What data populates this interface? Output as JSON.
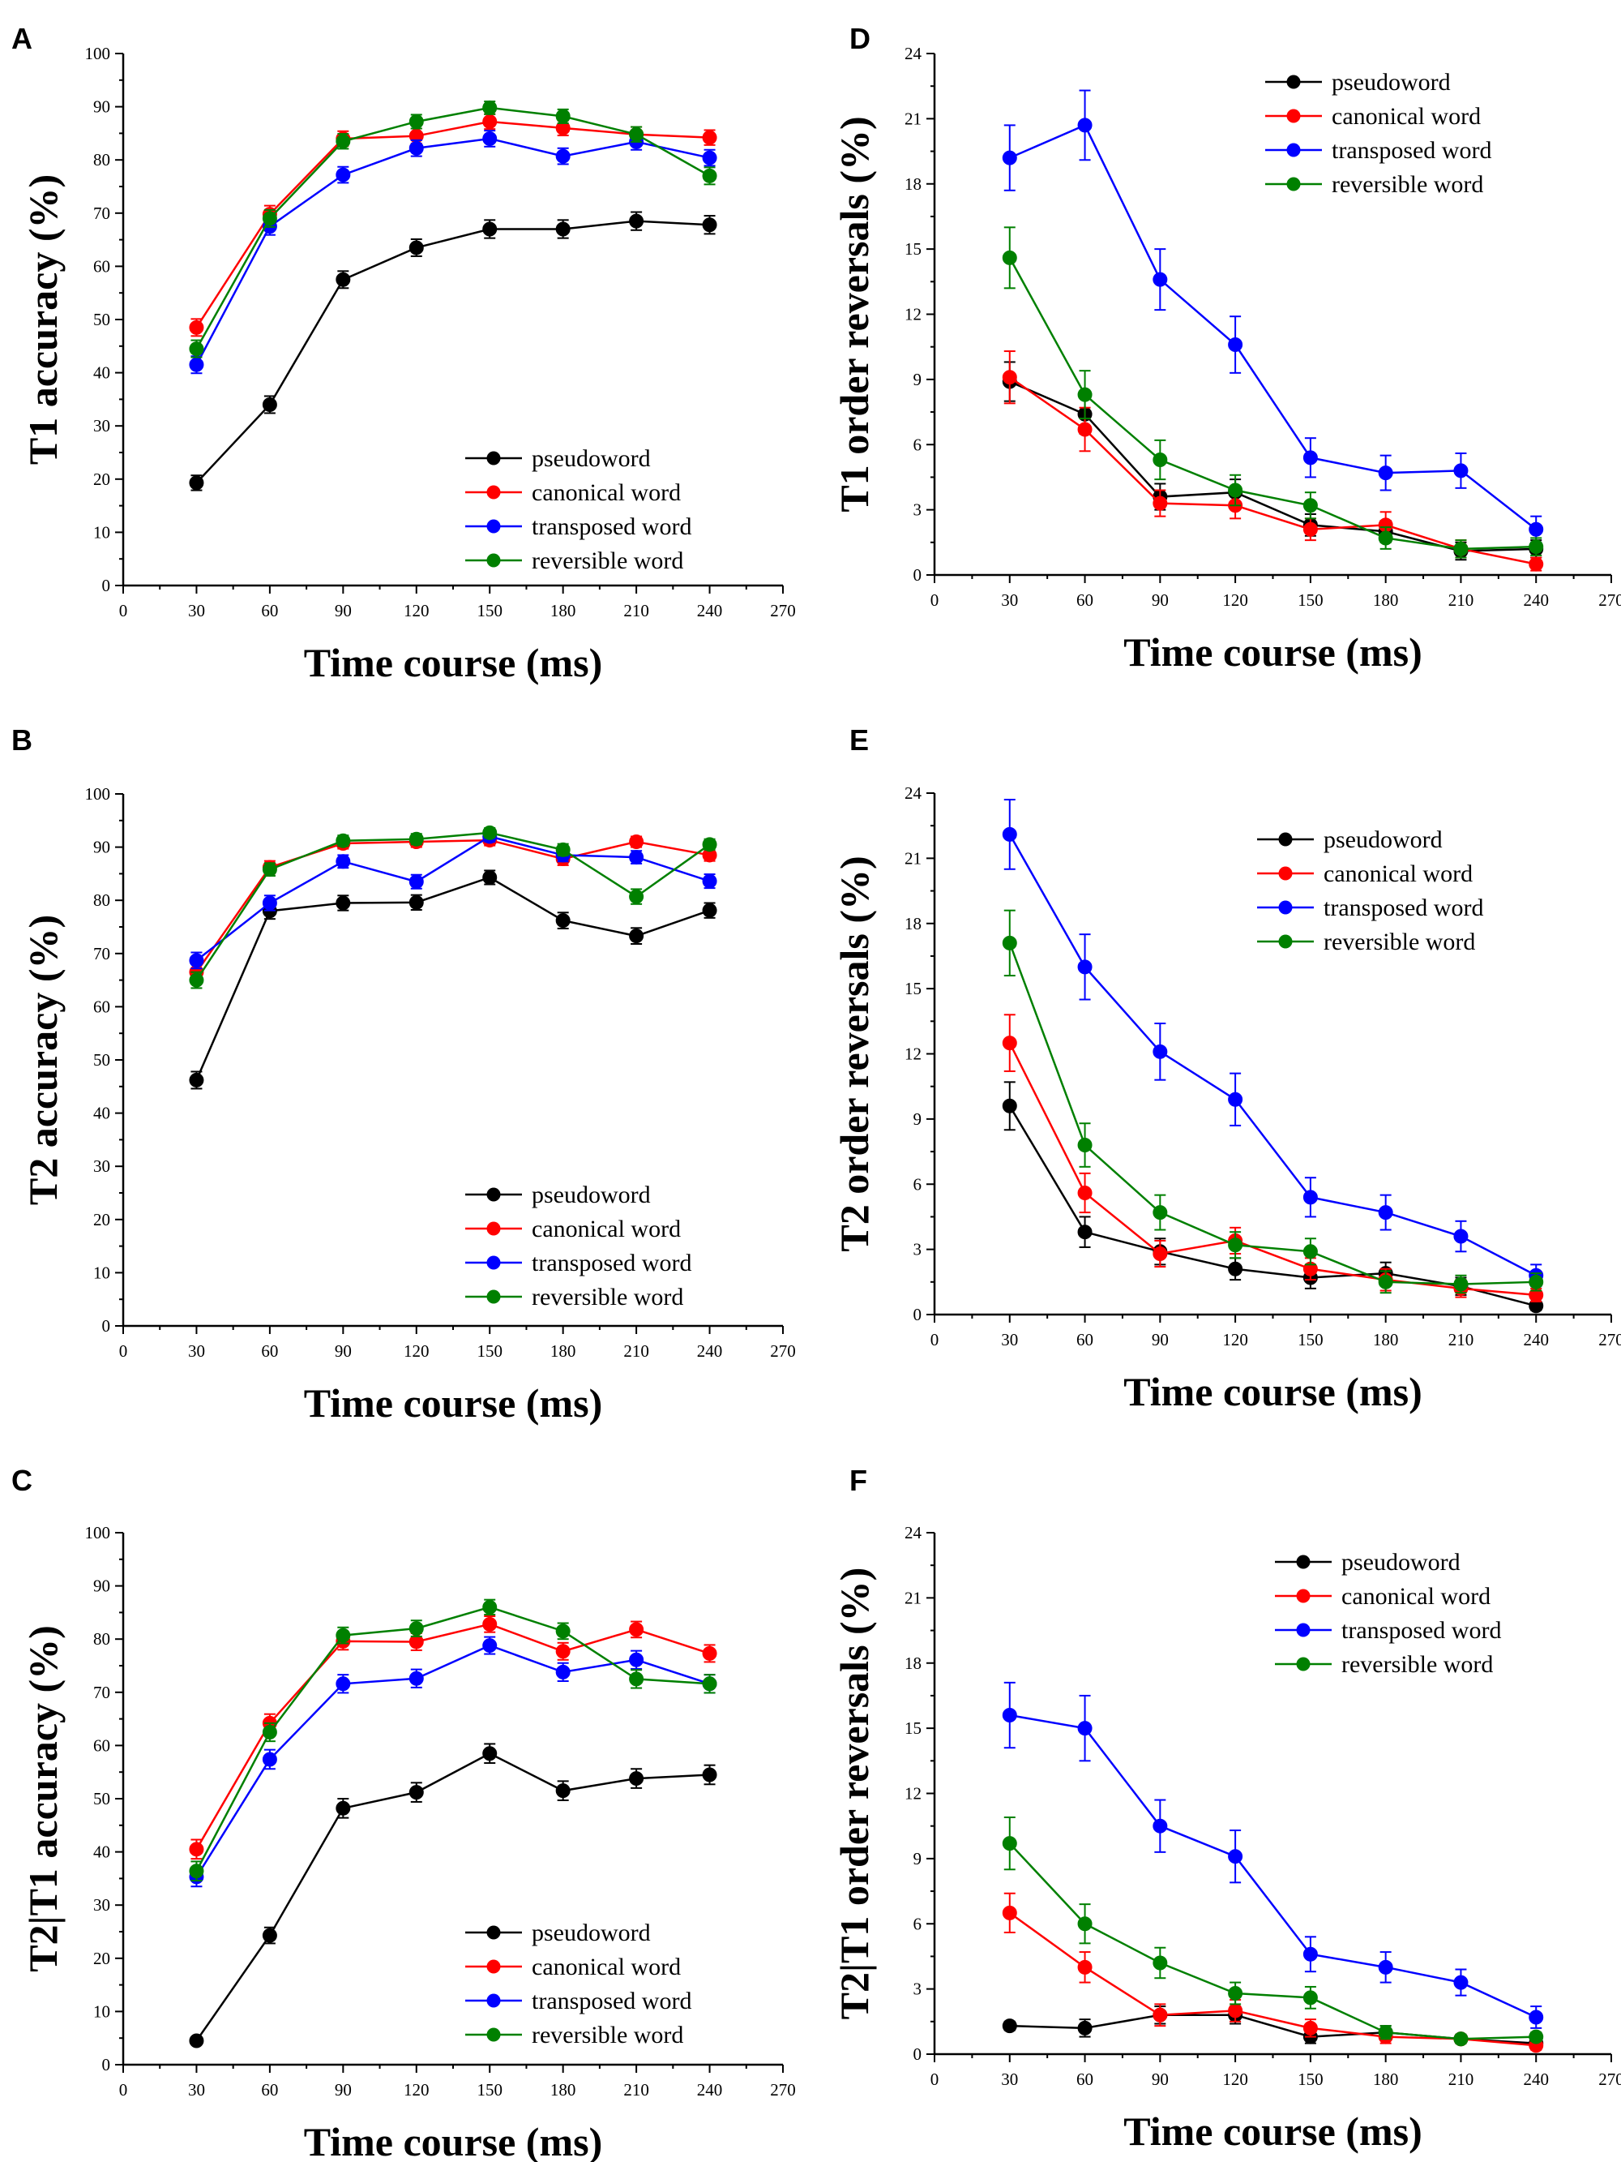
{
  "chart_data": [
    {
      "panel": "A",
      "type": "line",
      "xlabel": "Time course (ms)",
      "ylabel": "T1 accuracy (%)",
      "xlim": [
        0,
        270
      ],
      "xticks": [
        0,
        30,
        60,
        90,
        120,
        150,
        180,
        210,
        240,
        270
      ],
      "ylim": [
        0,
        100
      ],
      "yticks": [
        0,
        10,
        20,
        30,
        40,
        50,
        60,
        70,
        80,
        90,
        100
      ],
      "legend_position": "bottom-right",
      "x": [
        30,
        60,
        90,
        120,
        150,
        180,
        210,
        240
      ],
      "series": [
        {
          "name": "pseudoword",
          "color": "#000000",
          "values": [
            19.3,
            34.0,
            57.5,
            63.5,
            67.0,
            67.0,
            68.5,
            67.8
          ],
          "errors": [
            1.4,
            1.6,
            1.6,
            1.6,
            1.7,
            1.7,
            1.7,
            1.7
          ]
        },
        {
          "name": "canonical word",
          "color": "#ff0000",
          "values": [
            48.5,
            69.8,
            84.0,
            84.5,
            87.2,
            86.0,
            84.8,
            84.2
          ],
          "errors": [
            1.6,
            1.6,
            1.4,
            1.4,
            1.4,
            1.4,
            1.4,
            1.4
          ]
        },
        {
          "name": "transposed word",
          "color": "#0000ff",
          "values": [
            41.5,
            67.5,
            77.2,
            82.2,
            84.0,
            80.7,
            83.4,
            80.4
          ],
          "errors": [
            1.6,
            1.6,
            1.5,
            1.5,
            1.5,
            1.5,
            1.5,
            1.5
          ]
        },
        {
          "name": "reversible word",
          "color": "#008000",
          "values": [
            44.5,
            69.0,
            83.5,
            87.2,
            89.8,
            88.2,
            84.8,
            77.0
          ],
          "errors": [
            1.6,
            1.6,
            1.4,
            1.3,
            1.2,
            1.3,
            1.4,
            1.6
          ]
        }
      ]
    },
    {
      "panel": "B",
      "type": "line",
      "xlabel": "Time course (ms)",
      "ylabel": "T2 accuracy (%)",
      "xlim": [
        0,
        270
      ],
      "xticks": [
        0,
        30,
        60,
        90,
        120,
        150,
        180,
        210,
        240,
        270
      ],
      "ylim": [
        0,
        100
      ],
      "yticks": [
        0,
        10,
        20,
        30,
        40,
        50,
        60,
        70,
        80,
        90,
        100
      ],
      "legend_position": "bottom-right",
      "x": [
        30,
        60,
        90,
        120,
        150,
        180,
        210,
        240
      ],
      "series": [
        {
          "name": "pseudoword",
          "color": "#000000",
          "values": [
            46.2,
            78.0,
            79.5,
            79.6,
            84.3,
            76.2,
            73.3,
            78.1
          ],
          "errors": [
            1.6,
            1.5,
            1.4,
            1.4,
            1.3,
            1.5,
            1.5,
            1.4
          ]
        },
        {
          "name": "canonical word",
          "color": "#ff0000",
          "values": [
            66.5,
            86.2,
            90.7,
            91.0,
            91.3,
            87.8,
            91.0,
            88.5
          ],
          "errors": [
            1.5,
            1.2,
            1.0,
            1.0,
            1.0,
            1.2,
            1.0,
            1.1
          ]
        },
        {
          "name": "transposed word",
          "color": "#0000ff",
          "values": [
            68.7,
            79.5,
            87.3,
            83.5,
            92.0,
            88.5,
            88.1,
            83.6
          ],
          "errors": [
            1.5,
            1.4,
            1.2,
            1.3,
            1.0,
            1.2,
            1.2,
            1.3
          ]
        },
        {
          "name": "reversible word",
          "color": "#008000",
          "values": [
            65.0,
            85.8,
            91.2,
            91.5,
            92.7,
            89.5,
            80.7,
            90.5
          ],
          "errors": [
            1.5,
            1.2,
            1.0,
            1.0,
            0.9,
            1.1,
            1.4,
            1.0
          ]
        }
      ]
    },
    {
      "panel": "C",
      "type": "line",
      "xlabel": "Time course (ms)",
      "ylabel": "T2|T1 accuracy (%)",
      "xlim": [
        0,
        270
      ],
      "xticks": [
        0,
        30,
        60,
        90,
        120,
        150,
        180,
        210,
        240,
        270
      ],
      "ylim": [
        0,
        100
      ],
      "yticks": [
        0,
        10,
        20,
        30,
        40,
        50,
        60,
        70,
        80,
        90,
        100
      ],
      "legend_position": "bottom-right",
      "x": [
        30,
        60,
        90,
        120,
        150,
        180,
        210,
        240
      ],
      "series": [
        {
          "name": "pseudoword",
          "color": "#000000",
          "values": [
            4.5,
            24.3,
            48.2,
            51.2,
            58.5,
            51.5,
            53.8,
            54.5
          ],
          "errors": [
            0.6,
            1.5,
            1.8,
            1.8,
            1.8,
            1.8,
            1.8,
            1.8
          ]
        },
        {
          "name": "canonical word",
          "color": "#ff0000",
          "values": [
            40.5,
            64.2,
            79.6,
            79.5,
            82.8,
            77.7,
            81.8,
            77.3
          ],
          "errors": [
            1.8,
            1.7,
            1.6,
            1.6,
            1.5,
            1.6,
            1.5,
            1.6
          ]
        },
        {
          "name": "transposed word",
          "color": "#0000ff",
          "values": [
            35.3,
            57.4,
            71.6,
            72.6,
            78.8,
            73.8,
            76.1,
            71.6
          ],
          "errors": [
            1.8,
            1.8,
            1.7,
            1.7,
            1.6,
            1.7,
            1.7,
            1.7
          ]
        },
        {
          "name": "reversible word",
          "color": "#008000",
          "values": [
            36.4,
            62.5,
            80.7,
            82.0,
            86.0,
            81.5,
            72.5,
            71.6
          ],
          "errors": [
            1.8,
            1.7,
            1.5,
            1.5,
            1.4,
            1.5,
            1.7,
            1.7
          ]
        }
      ]
    },
    {
      "panel": "D",
      "type": "line",
      "xlabel": "Time course (ms)",
      "ylabel": "T1 order reversals (%)",
      "xlim": [
        0,
        270
      ],
      "xticks": [
        0,
        30,
        60,
        90,
        120,
        150,
        180,
        210,
        240,
        270
      ],
      "ylim": [
        0,
        24
      ],
      "yticks": [
        0,
        3,
        6,
        9,
        12,
        15,
        18,
        21,
        24
      ],
      "legend_position": "top-right",
      "x": [
        30,
        60,
        90,
        120,
        150,
        180,
        210,
        240
      ],
      "series": [
        {
          "name": "pseudoword",
          "color": "#000000",
          "values": [
            8.9,
            7.4,
            3.6,
            3.8,
            2.3,
            2.0,
            1.1,
            1.2
          ],
          "errors": [
            0.9,
            0.9,
            0.6,
            0.6,
            0.5,
            0.5,
            0.4,
            0.4
          ]
        },
        {
          "name": "canonical word",
          "color": "#ff0000",
          "values": [
            9.1,
            6.7,
            3.3,
            3.2,
            2.1,
            2.3,
            1.2,
            0.5
          ],
          "errors": [
            1.2,
            1.0,
            0.6,
            0.6,
            0.5,
            0.6,
            0.4,
            0.3
          ]
        },
        {
          "name": "transposed word",
          "color": "#0000ff",
          "values": [
            19.2,
            20.7,
            13.6,
            10.6,
            5.4,
            4.7,
            4.8,
            2.1
          ],
          "errors": [
            1.5,
            1.6,
            1.4,
            1.3,
            0.9,
            0.8,
            0.8,
            0.6
          ]
        },
        {
          "name": "reversible word",
          "color": "#008000",
          "values": [
            14.6,
            8.3,
            5.3,
            3.9,
            3.2,
            1.7,
            1.2,
            1.3
          ],
          "errors": [
            1.4,
            1.1,
            0.9,
            0.7,
            0.6,
            0.5,
            0.4,
            0.4
          ]
        }
      ]
    },
    {
      "panel": "E",
      "type": "line",
      "xlabel": "Time course (ms)",
      "ylabel": "T2 order reversals (%)",
      "xlim": [
        0,
        270
      ],
      "xticks": [
        0,
        30,
        60,
        90,
        120,
        150,
        180,
        210,
        240,
        270
      ],
      "ylim": [
        0,
        24
      ],
      "yticks": [
        0,
        3,
        6,
        9,
        12,
        15,
        18,
        21,
        24
      ],
      "legend_position": "top-right",
      "x": [
        30,
        60,
        90,
        120,
        150,
        180,
        210,
        240
      ],
      "series": [
        {
          "name": "pseudoword",
          "color": "#000000",
          "values": [
            9.6,
            3.8,
            2.9,
            2.1,
            1.7,
            1.9,
            1.3,
            0.4
          ],
          "errors": [
            1.1,
            0.7,
            0.6,
            0.5,
            0.5,
            0.5,
            0.4,
            0.2
          ]
        },
        {
          "name": "canonical word",
          "color": "#ff0000",
          "values": [
            12.5,
            5.6,
            2.8,
            3.4,
            2.1,
            1.6,
            1.2,
            0.9
          ],
          "errors": [
            1.3,
            0.9,
            0.6,
            0.6,
            0.5,
            0.5,
            0.4,
            0.3
          ]
        },
        {
          "name": "transposed word",
          "color": "#0000ff",
          "values": [
            22.1,
            16.0,
            12.1,
            9.9,
            5.4,
            4.7,
            3.6,
            1.8
          ],
          "errors": [
            1.6,
            1.5,
            1.3,
            1.2,
            0.9,
            0.8,
            0.7,
            0.5
          ]
        },
        {
          "name": "reversible word",
          "color": "#008000",
          "values": [
            17.1,
            7.8,
            4.7,
            3.2,
            2.9,
            1.5,
            1.4,
            1.5
          ],
          "errors": [
            1.5,
            1.0,
            0.8,
            0.6,
            0.6,
            0.5,
            0.4,
            0.4
          ]
        }
      ]
    },
    {
      "panel": "F",
      "type": "line",
      "xlabel": "Time course (ms)",
      "ylabel": "T2|T1 order reversals (%)",
      "xlim": [
        0,
        270
      ],
      "xticks": [
        0,
        30,
        60,
        90,
        120,
        150,
        180,
        210,
        240,
        270
      ],
      "ylim": [
        0,
        24
      ],
      "yticks": [
        0,
        3,
        6,
        9,
        12,
        15,
        18,
        21,
        24
      ],
      "legend_position": "top-right",
      "x": [
        30,
        60,
        90,
        120,
        150,
        180,
        210,
        240
      ],
      "series": [
        {
          "name": "pseudoword",
          "color": "#000000",
          "values": [
            1.3,
            1.2,
            1.8,
            1.8,
            0.8,
            1.0,
            0.7,
            0.5
          ],
          "errors": [
            0.2,
            0.4,
            0.4,
            0.4,
            0.3,
            0.3,
            0.2,
            0.2
          ]
        },
        {
          "name": "canonical word",
          "color": "#ff0000",
          "values": [
            6.5,
            4.0,
            1.8,
            2.0,
            1.2,
            0.8,
            0.7,
            0.4
          ],
          "errors": [
            0.9,
            0.7,
            0.5,
            0.5,
            0.4,
            0.3,
            0.2,
            0.2
          ]
        },
        {
          "name": "transposed word",
          "color": "#0000ff",
          "values": [
            15.6,
            15.0,
            10.5,
            9.1,
            4.6,
            4.0,
            3.3,
            1.7
          ],
          "errors": [
            1.5,
            1.5,
            1.2,
            1.2,
            0.8,
            0.7,
            0.6,
            0.5
          ]
        },
        {
          "name": "reversible word",
          "color": "#008000",
          "values": [
            9.7,
            6.0,
            4.2,
            2.8,
            2.6,
            1.0,
            0.7,
            0.8
          ],
          "errors": [
            1.2,
            0.9,
            0.7,
            0.5,
            0.5,
            0.3,
            0.2,
            0.2
          ]
        }
      ]
    }
  ]
}
